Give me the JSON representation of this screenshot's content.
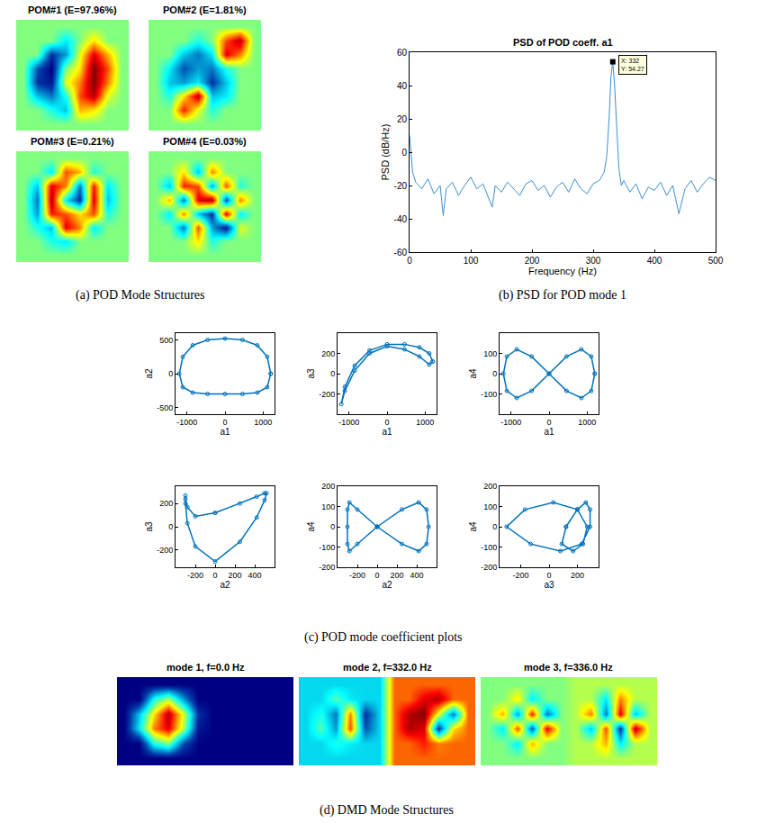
{
  "captions": [
    "(a) POD Mode Structures",
    "(b) PSD for POD mode 1",
    "(c) POD mode coefficient plots",
    "(d) DMD Mode Structures"
  ],
  "chart_data": [
    {
      "type": "heatmap",
      "title": "POM#1 (E=97.96%)",
      "color": "Jet",
      "zlim": [
        -1,
        1
      ],
      "tick_labels": false,
      "z": [
        [
          0,
          0,
          0,
          0,
          0,
          0,
          0,
          0
        ],
        [
          0,
          0,
          0,
          -0.3,
          0,
          0.3,
          0,
          0
        ],
        [
          0,
          0,
          -0.8,
          -0.5,
          0.2,
          0.8,
          0.4,
          0
        ],
        [
          0,
          -0.7,
          -1,
          0,
          0.3,
          1,
          0.6,
          0
        ],
        [
          0,
          -0.8,
          -0.9,
          0.2,
          0.5,
          1,
          0.5,
          0
        ],
        [
          0,
          -0.4,
          -0.6,
          -0.2,
          0.6,
          0.9,
          0.2,
          0
        ],
        [
          0,
          0,
          -0.2,
          -0.4,
          0.4,
          0.3,
          0,
          0
        ],
        [
          0,
          0,
          0,
          0,
          0,
          0,
          0,
          0
        ]
      ]
    },
    {
      "type": "heatmap",
      "title": "POM#2 (E=1.81%)",
      "color": "Jet",
      "zlim": [
        -1,
        1
      ],
      "tick_labels": false,
      "z": [
        [
          0,
          0,
          0,
          0,
          0,
          0,
          0,
          0
        ],
        [
          0,
          0,
          0,
          -0.2,
          0,
          0.6,
          0.9,
          0
        ],
        [
          0,
          0,
          -0.4,
          -0.6,
          -0.3,
          0.8,
          0.5,
          0
        ],
        [
          0,
          -0.3,
          -0.7,
          -0.5,
          -0.6,
          -0.2,
          0,
          0
        ],
        [
          0,
          -0.4,
          -0.5,
          -0.3,
          -0.8,
          -0.4,
          0,
          0
        ],
        [
          0,
          -0.2,
          0.3,
          0.9,
          -0.4,
          -0.3,
          0,
          0
        ],
        [
          0,
          0,
          0.7,
          0.2,
          -0.2,
          0,
          0,
          0
        ],
        [
          0,
          0,
          0,
          0,
          0,
          0,
          0,
          0
        ]
      ]
    },
    {
      "type": "heatmap",
      "title": "POM#3 (E=0.21%)",
      "color": "Jet",
      "zlim": [
        -1,
        1
      ],
      "tick_labels": false,
      "z": [
        [
          0,
          0,
          0,
          0,
          0,
          0,
          0,
          0
        ],
        [
          0,
          0,
          -0.3,
          0.6,
          0.4,
          -0.2,
          0,
          0
        ],
        [
          0,
          -0.4,
          0.8,
          0.5,
          -0.6,
          0.7,
          -0.3,
          0
        ],
        [
          0,
          -0.6,
          0.9,
          -0.3,
          -0.8,
          0.8,
          -0.4,
          0
        ],
        [
          0,
          -0.5,
          0.7,
          0.6,
          0.3,
          0.6,
          -0.2,
          0
        ],
        [
          0,
          -0.2,
          -0.4,
          0.8,
          0.5,
          -0.3,
          0,
          0
        ],
        [
          0,
          0,
          -0.2,
          -0.3,
          0,
          0,
          0,
          0
        ],
        [
          0,
          0,
          0,
          0,
          0,
          0,
          0,
          0
        ]
      ]
    },
    {
      "type": "heatmap",
      "title": "POM#4 (E=0.03%)",
      "color": "Jet",
      "zlim": [
        -1,
        1
      ],
      "tick_labels": false,
      "z": [
        [
          0,
          0,
          0,
          0,
          0,
          0,
          0,
          0
        ],
        [
          0,
          0,
          0.3,
          -0.4,
          0.5,
          0,
          0,
          0
        ],
        [
          0,
          -0.4,
          0.7,
          0.6,
          -0.5,
          0.6,
          -0.2,
          0
        ],
        [
          0,
          0.4,
          -0.6,
          0.8,
          0.9,
          -0.7,
          0.5,
          0
        ],
        [
          0,
          -0.3,
          0.5,
          -0.4,
          -0.8,
          0.8,
          -0.3,
          0
        ],
        [
          0,
          0,
          -0.6,
          0.6,
          -0.5,
          -0.9,
          0.2,
          0
        ],
        [
          0,
          0,
          0,
          0.3,
          -0.2,
          0,
          0,
          0
        ],
        [
          0,
          0,
          0,
          0,
          0,
          0,
          0,
          0
        ]
      ]
    },
    {
      "type": "line",
      "title": "PSD of POD coeff. a1",
      "xlabel": "Frequency (Hz)",
      "ylabel": "PSD (dB/Hz)",
      "xlim": [
        0,
        500
      ],
      "xticks": [
        0,
        100,
        200,
        300,
        400,
        500
      ],
      "ylim": [
        -60,
        60
      ],
      "yticks": [
        -60,
        -40,
        -20,
        0,
        20,
        40,
        60
      ],
      "color": "#3d8fd1",
      "line_style": "solid",
      "x": [
        0,
        5,
        10,
        20,
        30,
        40,
        50,
        55,
        60,
        70,
        80,
        90,
        100,
        110,
        120,
        130,
        135,
        140,
        150,
        160,
        170,
        180,
        190,
        200,
        210,
        220,
        230,
        240,
        250,
        260,
        270,
        280,
        290,
        300,
        310,
        318,
        322,
        326,
        329,
        332,
        335,
        338,
        342,
        346,
        350,
        360,
        370,
        380,
        390,
        400,
        410,
        420,
        430,
        440,
        450,
        460,
        470,
        480,
        490,
        500
      ],
      "values": [
        10,
        -12,
        -18,
        -22,
        -16,
        -25,
        -20,
        -38,
        -22,
        -18,
        -26,
        -20,
        -15,
        -22,
        -19,
        -28,
        -33,
        -20,
        -24,
        -18,
        -22,
        -26,
        -19,
        -17,
        -23,
        -20,
        -27,
        -21,
        -18,
        -24,
        -16,
        -22,
        -25,
        -19,
        -17,
        -12,
        -3,
        20,
        45,
        54.27,
        40,
        15,
        -10,
        -20,
        -17,
        -24,
        -19,
        -28,
        -21,
        -23,
        -18,
        -26,
        -20,
        -37,
        -22,
        -17,
        -24,
        -19,
        -15,
        -17
      ],
      "annotations": [
        {
          "x": 332,
          "y": 54.27,
          "text": [
            "X: 332",
            "Y: 54.27"
          ]
        }
      ]
    },
    {
      "type": "scatter",
      "xlabel": "a1",
      "ylabel": "a2",
      "xlim": [
        -1300,
        1300
      ],
      "xticks": [
        -1000,
        0,
        1000
      ],
      "ylim": [
        -600,
        600
      ],
      "yticks": [
        -500,
        0,
        500
      ],
      "color": "#0072bd",
      "marker": "circle-open",
      "line_style": "solid",
      "x": [
        1200,
        1109,
        849,
        459,
        0,
        -459,
        -849,
        -1109,
        -1200,
        -1109,
        -849,
        -459,
        0,
        459,
        849,
        1109,
        1200
      ],
      "y": [
        0,
        250,
        420,
        500,
        520,
        500,
        420,
        250,
        0,
        -200,
        -280,
        -300,
        -300,
        -300,
        -280,
        -200,
        0
      ]
    },
    {
      "type": "scatter",
      "xlabel": "a1",
      "ylabel": "a3",
      "xlim": [
        -1300,
        1300
      ],
      "xticks": [
        -1000,
        0,
        1000
      ],
      "ylim": [
        -400,
        400
      ],
      "yticks": [
        -200,
        0,
        200
      ],
      "color": "#0072bd",
      "marker": "circle-open",
      "line_style": "solid",
      "x": [
        1200,
        1109,
        849,
        459,
        0,
        -459,
        -849,
        -1109,
        -1200,
        -1109,
        -849,
        -459,
        0,
        459,
        849,
        1109,
        1200
      ],
      "y": [
        120,
        200,
        260,
        290,
        290,
        230,
        80,
        -130,
        -300,
        -170,
        30,
        200,
        270,
        240,
        170,
        90,
        120
      ]
    },
    {
      "type": "scatter",
      "xlabel": "a1",
      "ylabel": "a4",
      "xlim": [
        -1300,
        1300
      ],
      "xticks": [
        -1000,
        0,
        1000
      ],
      "ylim": [
        -200,
        200
      ],
      "yticks": [
        -100,
        0,
        100
      ],
      "color": "#0072bd",
      "marker": "circle-open",
      "line_style": "solid",
      "x": [
        1200,
        1109,
        849,
        459,
        0,
        -459,
        -849,
        -1109,
        -1200,
        -1109,
        -849,
        -459,
        0,
        459,
        849,
        1109,
        1200
      ],
      "y": [
        0,
        85,
        120,
        85,
        0,
        -85,
        -120,
        -85,
        0,
        85,
        120,
        85,
        0,
        -85,
        -120,
        -85,
        0
      ]
    },
    {
      "type": "scatter",
      "xlabel": "a2",
      "ylabel": "a3",
      "xlim": [
        -400,
        600
      ],
      "xticks": [
        -200,
        0,
        200,
        400
      ],
      "ylim": [
        -350,
        350
      ],
      "yticks": [
        -200,
        0,
        200
      ],
      "color": "#0072bd",
      "marker": "circle-open",
      "line_style": "solid",
      "x": [
        0,
        250,
        420,
        500,
        520,
        500,
        420,
        250,
        0,
        -200,
        -280,
        -300,
        -300,
        -300,
        -280,
        -200,
        0
      ],
      "y": [
        120,
        200,
        260,
        290,
        290,
        230,
        80,
        -130,
        -300,
        -170,
        30,
        200,
        270,
        240,
        170,
        90,
        120
      ]
    },
    {
      "type": "scatter",
      "xlabel": "a2",
      "ylabel": "a4",
      "xlim": [
        -400,
        600
      ],
      "xticks": [
        -200,
        0,
        200,
        400
      ],
      "ylim": [
        -200,
        200
      ],
      "yticks": [
        -200,
        -100,
        0,
        100,
        200
      ],
      "color": "#0072bd",
      "marker": "circle-open",
      "line_style": "solid",
      "x": [
        0,
        250,
        420,
        500,
        520,
        500,
        420,
        250,
        0,
        -200,
        -280,
        -300,
        -300,
        -300,
        -280,
        -200,
        0
      ],
      "y": [
        0,
        85,
        120,
        85,
        0,
        -85,
        -120,
        -85,
        0,
        85,
        120,
        85,
        0,
        -85,
        -120,
        -85,
        0
      ]
    },
    {
      "type": "scatter",
      "xlabel": "a3",
      "ylabel": "a4",
      "xlim": [
        -350,
        350
      ],
      "xticks": [
        -200,
        0,
        200
      ],
      "ylim": [
        -200,
        200
      ],
      "yticks": [
        -200,
        -100,
        0,
        100,
        200
      ],
      "color": "#0072bd",
      "marker": "circle-open",
      "line_style": "solid",
      "x": [
        120,
        200,
        260,
        290,
        290,
        230,
        80,
        -130,
        -300,
        -170,
        30,
        200,
        270,
        240,
        170,
        90,
        120
      ],
      "y": [
        0,
        85,
        120,
        85,
        0,
        -85,
        -120,
        -85,
        0,
        85,
        120,
        85,
        0,
        -85,
        -120,
        -85,
        0
      ]
    },
    {
      "type": "heatmap",
      "title": "mode 1, f=0.0 Hz",
      "color": "Jet",
      "zlim": [
        -1,
        1
      ],
      "tick_labels": false,
      "z": [
        [
          -1,
          -1,
          -1,
          -1,
          -1,
          -1,
          -1,
          -1,
          -1,
          -1,
          -1,
          -1
        ],
        [
          -1,
          -1,
          -0.2,
          0.1,
          -0.5,
          -1,
          -1,
          -1,
          -1,
          -1,
          -1,
          -1
        ],
        [
          -1,
          -0.4,
          0.3,
          0.9,
          0.2,
          -0.8,
          -1,
          -1,
          -1,
          -1,
          -1,
          -1
        ],
        [
          -1,
          -0.3,
          0.5,
          0.8,
          0.1,
          -0.9,
          -1,
          -1,
          -1,
          -1,
          -1,
          -1
        ],
        [
          -1,
          -1,
          -0.2,
          0,
          -0.7,
          -1,
          -1,
          -1,
          -1,
          -1,
          -1,
          -1
        ],
        [
          -1,
          -1,
          -1,
          -1,
          -1,
          -1,
          -1,
          -1,
          -1,
          -1,
          -1,
          -1
        ]
      ]
    },
    {
      "type": "heatmap",
      "title": "mode 2, f=332.0 Hz",
      "color": "Jet",
      "zlim": [
        -1,
        1
      ],
      "tick_labels": false,
      "z": [
        [
          -0.35,
          -0.35,
          -0.35,
          -0.35,
          -0.35,
          -0.35,
          0.55,
          0.55,
          0.55,
          0.55,
          0.55,
          0.55
        ],
        [
          -0.35,
          -0.35,
          -0.1,
          -0.3,
          -0.35,
          -0.35,
          0.55,
          0.55,
          0.8,
          0.9,
          0.55,
          0.55
        ],
        [
          -0.35,
          -0.2,
          -0.6,
          0.5,
          -0.8,
          -0.35,
          0.55,
          0.9,
          1,
          0.2,
          -0.6,
          0.55
        ],
        [
          -0.35,
          -0.1,
          -0.5,
          0.6,
          -0.7,
          -0.35,
          0.55,
          0.9,
          0.8,
          -0.8,
          0.3,
          0.55
        ],
        [
          -0.35,
          -0.35,
          -0.2,
          -0.3,
          -0.35,
          -0.35,
          0.55,
          0.55,
          0.7,
          0.5,
          0.55,
          0.55
        ],
        [
          -0.35,
          -0.35,
          -0.35,
          -0.35,
          -0.35,
          -0.35,
          0.55,
          0.55,
          0.55,
          0.55,
          0.55,
          0.55
        ]
      ]
    },
    {
      "type": "heatmap",
      "title": "mode 3, f=336.0 Hz",
      "color": "Jet",
      "zlim": [
        -1,
        1
      ],
      "tick_labels": false,
      "z": [
        [
          0,
          0,
          0,
          0,
          0,
          0,
          0.1,
          0.1,
          0.1,
          0.1,
          0.1,
          0.1
        ],
        [
          0,
          0,
          0.3,
          -0.3,
          0,
          0,
          0.1,
          0.1,
          -0.3,
          0.5,
          0.1,
          0.1
        ],
        [
          0,
          0.4,
          -0.5,
          0.7,
          -0.6,
          0,
          0.1,
          0.5,
          -0.6,
          0.8,
          -0.4,
          0.1
        ],
        [
          0,
          -0.3,
          0.6,
          -0.7,
          0.8,
          0,
          0.1,
          -0.4,
          0.6,
          -0.8,
          0.9,
          0.1
        ],
        [
          0,
          0,
          -0.3,
          0.4,
          0,
          0,
          0.1,
          0.1,
          0.4,
          -0.3,
          0.1,
          0.1
        ],
        [
          0,
          0,
          0,
          0,
          0,
          0,
          0.1,
          0.1,
          0.1,
          0.1,
          0.1,
          0.1
        ]
      ]
    }
  ]
}
